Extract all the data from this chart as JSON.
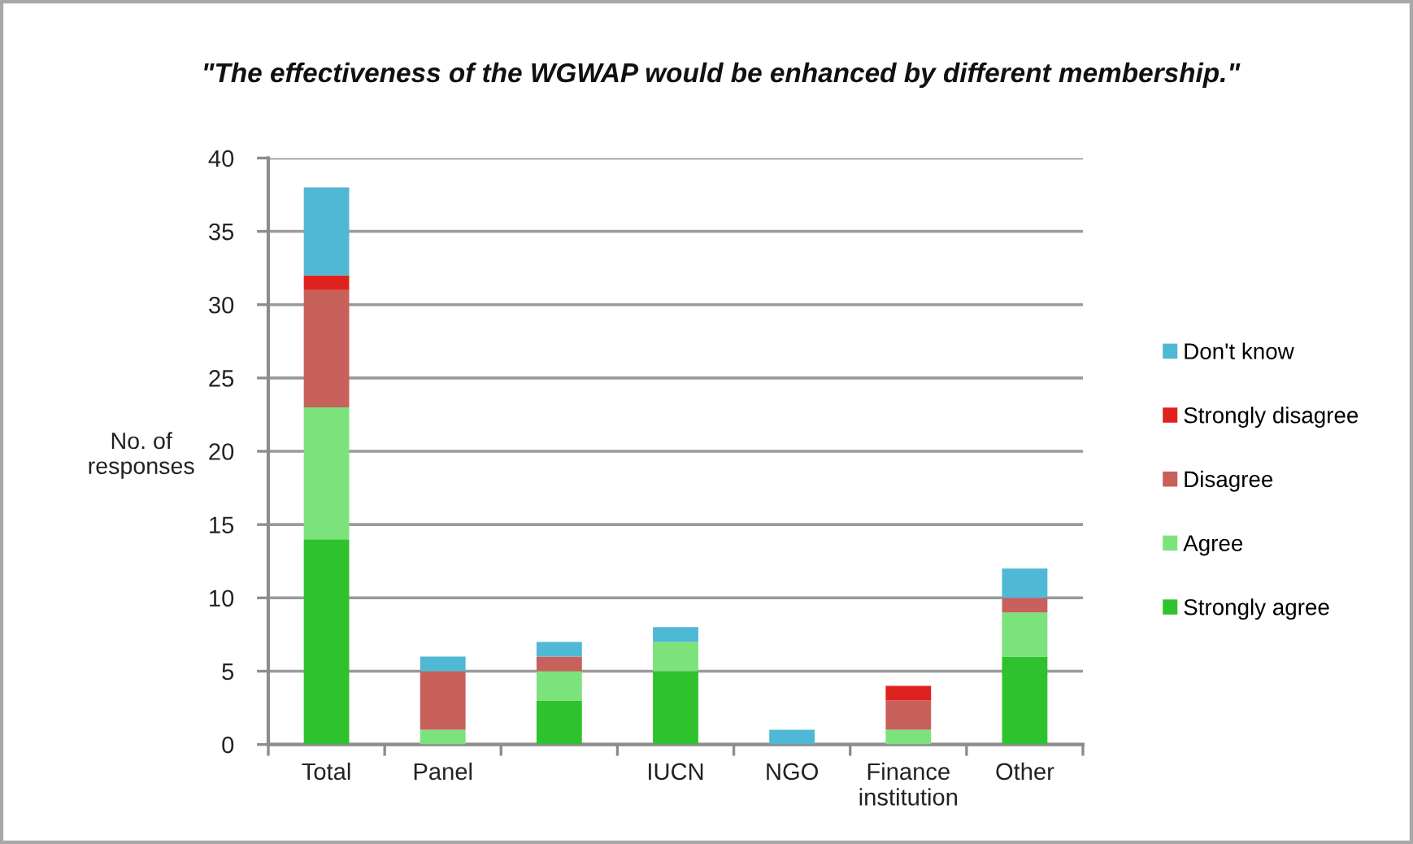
{
  "chart_data": {
    "type": "bar",
    "title": "\"The effectiveness of the WGWAP would be enhanced by different membership.\"",
    "ylabel": "No. of\nresponses",
    "categories": [
      "Total",
      "Panel",
      null,
      "IUCN",
      "NGO",
      "Finance\ninstitution",
      "Other"
    ],
    "stacked": true,
    "series": [
      {
        "name": "Strongly agree",
        "color": "#2ec22e",
        "values": [
          14,
          0,
          3,
          5,
          0,
          0,
          6
        ]
      },
      {
        "name": "Agree",
        "color": "#7ce27c",
        "values": [
          9,
          1,
          2,
          2,
          0,
          1,
          3
        ]
      },
      {
        "name": "Disagree",
        "color": "#c8605c",
        "values": [
          8,
          4,
          1,
          0,
          0,
          2,
          1
        ]
      },
      {
        "name": "Strongly disagree",
        "color": "#e0221e",
        "values": [
          1,
          0,
          0,
          0,
          0,
          1,
          0
        ]
      },
      {
        "name": "Don't know",
        "color": "#4fb8d4",
        "values": [
          6,
          1,
          1,
          1,
          1,
          0,
          2
        ]
      }
    ],
    "ylim": [
      0,
      40
    ],
    "yticks": [
      0,
      5,
      10,
      15,
      20,
      25,
      30,
      35,
      40
    ],
    "grid": "y",
    "legend": "right"
  }
}
